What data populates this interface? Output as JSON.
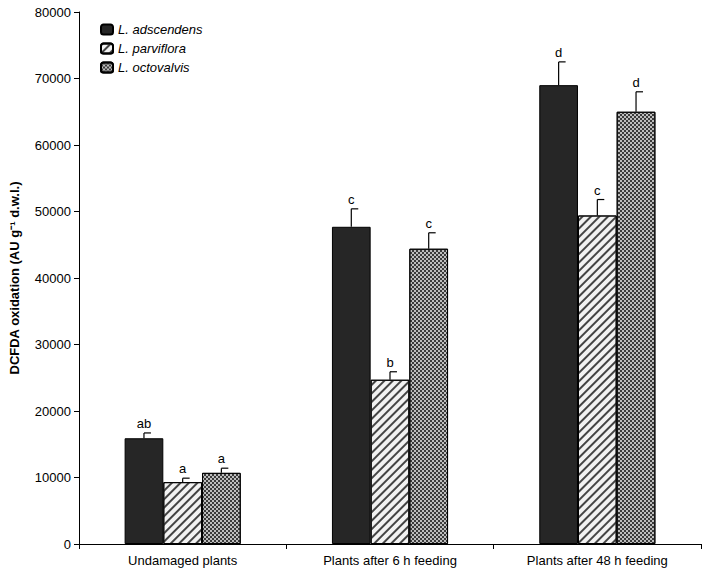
{
  "chart_data": {
    "type": "bar",
    "y_label": "DCFDA oxidation (AU g⁻¹ d.w.l.)",
    "categories": [
      "Undamaged plants",
      "Plants after 6 h feeding",
      "Plants after 48 h feeding"
    ],
    "series": [
      {
        "name": "L. adscendens",
        "color": "#262626",
        "values": [
          15900,
          47700,
          69000
        ],
        "errors": [
          800,
          2700,
          3500
        ],
        "annotations": [
          "ab",
          "c",
          "d"
        ]
      },
      {
        "name": "L. parviflora",
        "color": "#f2f2f2",
        "values": [
          9300,
          24700,
          49400
        ],
        "errors": [
          600,
          1200,
          2400
        ],
        "annotations": [
          "a",
          "b",
          "c"
        ]
      },
      {
        "name": "L. octovalvis",
        "color": "#bdbdbd",
        "values": [
          10700,
          44400,
          65000
        ],
        "errors": [
          700,
          2400,
          3000
        ],
        "annotations": [
          "a",
          "c",
          "d"
        ]
      }
    ],
    "ylim": [
      0,
      80000
    ],
    "yticks": [
      0,
      10000,
      20000,
      30000,
      40000,
      50000,
      60000,
      70000,
      80000
    ],
    "grid": false,
    "legend": "upper left"
  }
}
